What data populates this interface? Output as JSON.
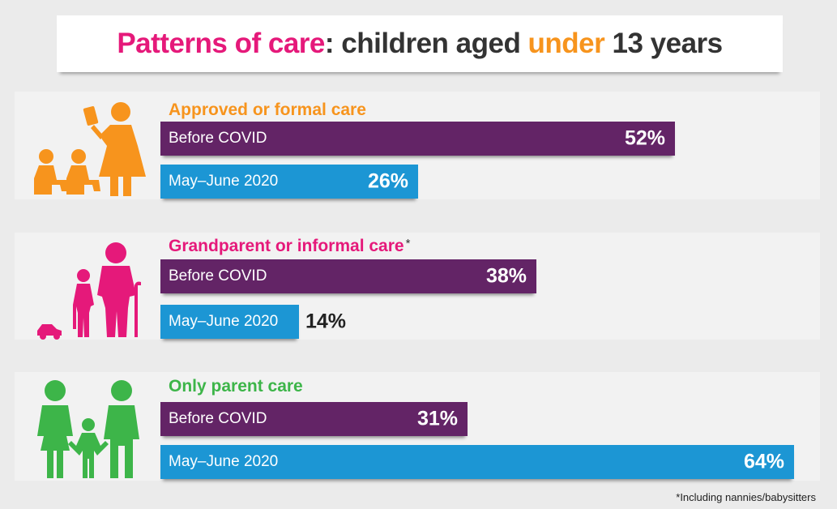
{
  "title": {
    "part1": "Patterns of care",
    "part2": ": children aged ",
    "part3": "under",
    "part4": " 13 years"
  },
  "colors": {
    "pink": "#e5197a",
    "orange": "#f7941d",
    "green": "#3db549",
    "dark": "#333333",
    "purple": "#632466",
    "blue": "#1c96d4"
  },
  "chart_data": {
    "type": "bar",
    "orientation": "horizontal",
    "title": "Patterns of care: children aged under 13 years",
    "value_unit": "%",
    "xlim": [
      0,
      64
    ],
    "series_names": [
      "Before COVID",
      "May–June 2020"
    ],
    "groups": [
      {
        "name": "Approved or formal care",
        "icon": "carer-with-children-icon",
        "bars": [
          {
            "label": "Before COVID",
            "value": 52,
            "display": "52%"
          },
          {
            "label": "May–June 2020",
            "value": 26,
            "display": "26%"
          }
        ]
      },
      {
        "name": "Grandparent or informal care",
        "footnote_mark": "*",
        "icon": "grandparent-with-child-icon",
        "bars": [
          {
            "label": "Before COVID",
            "value": 38,
            "display": "38%"
          },
          {
            "label": "May–June 2020",
            "value": 14,
            "display": "14%"
          }
        ]
      },
      {
        "name": "Only parent care",
        "icon": "family-icon",
        "bars": [
          {
            "label": "Before COVID",
            "value": 31,
            "display": "31%"
          },
          {
            "label": "May–June 2020",
            "value": 64,
            "display": "64%"
          }
        ]
      }
    ],
    "footnote": "*Including nannies/babysitters"
  }
}
